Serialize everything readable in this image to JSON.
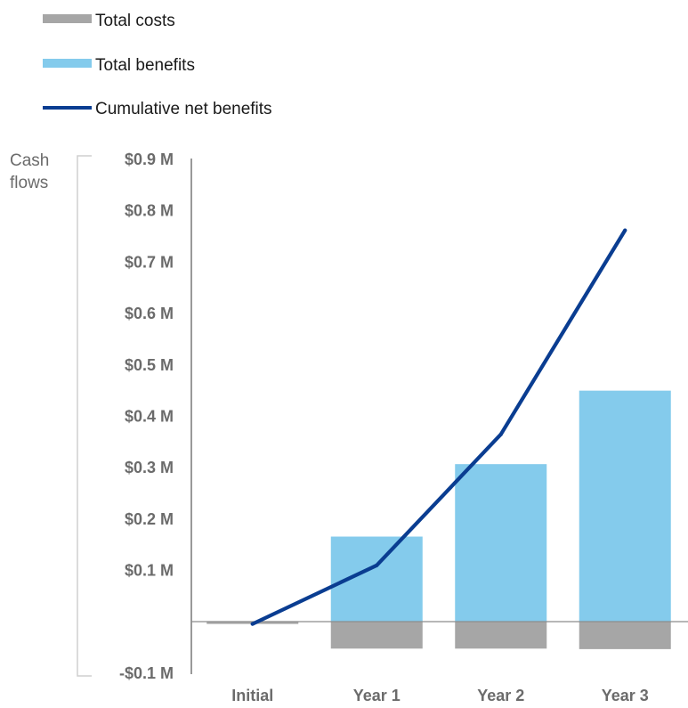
{
  "chart_data": {
    "type": "bar",
    "title": "",
    "xlabel": "",
    "ylabel": "Cash flows",
    "categories": [
      "Initial",
      "Year 1",
      "Year 2",
      "Year 3"
    ],
    "ylim": [
      -0.1,
      0.9
    ],
    "y_unit": "$M",
    "y_ticks": [
      {
        "value": 0.9,
        "label": "$0.9 M"
      },
      {
        "value": 0.8,
        "label": "$0.8 M"
      },
      {
        "value": 0.7,
        "label": "$0.7 M"
      },
      {
        "value": 0.6,
        "label": "$0.6 M"
      },
      {
        "value": 0.5,
        "label": "$0.5 M"
      },
      {
        "value": 0.4,
        "label": "$0.4 M"
      },
      {
        "value": 0.3,
        "label": "$0.3 M"
      },
      {
        "value": 0.2,
        "label": "$0.2 M"
      },
      {
        "value": 0.1,
        "label": "$0.1 M"
      },
      {
        "value": -0.1,
        "label": "-$0.1 M"
      }
    ],
    "grid": false,
    "legend_position": "top-left",
    "series": [
      {
        "name": "Total costs",
        "type": "bar",
        "color": "#a6a6a6",
        "values": [
          -0.004,
          -0.052,
          -0.052,
          -0.053
        ]
      },
      {
        "name": "Total benefits",
        "type": "bar",
        "color": "#84cbec",
        "values": [
          0,
          0.166,
          0.307,
          0.45
        ]
      },
      {
        "name": "Cumulative net benefits",
        "type": "line",
        "color": "#0a3d91",
        "values": [
          -0.004,
          0.11,
          0.365,
          0.762
        ]
      }
    ]
  }
}
